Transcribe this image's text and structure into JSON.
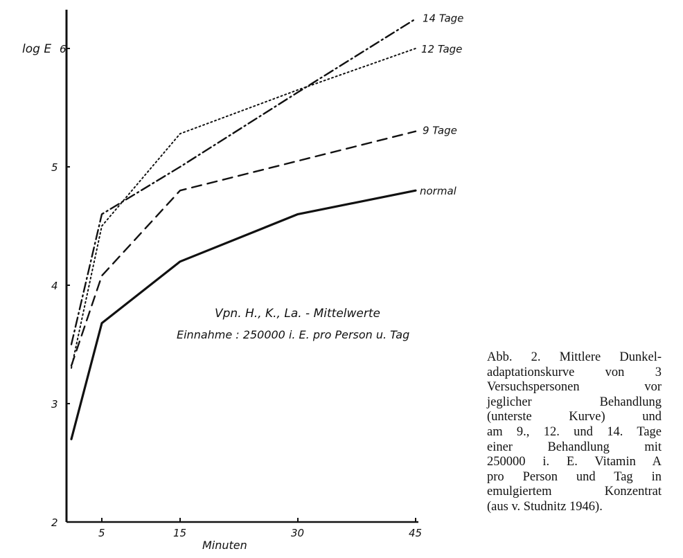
{
  "chart_data": {
    "type": "line",
    "x": [
      0,
      5,
      15,
      30,
      45
    ],
    "x_ticks": [
      "5",
      "15",
      "30",
      "45"
    ],
    "x_tick_values": [
      5,
      15,
      30,
      45
    ],
    "xlabel": "Minuten",
    "ylabel": "log E",
    "y_ticks": [
      "2",
      "3",
      "4",
      "5",
      "6"
    ],
    "y_tick_values": [
      2,
      3,
      4,
      5,
      6
    ],
    "xlim": [
      -1,
      45
    ],
    "ylim": [
      2,
      6.4
    ],
    "grid": false,
    "annotation_line1": "Vpn. H., K., La. - Mittelwerte",
    "annotation_line2": "Einnahme : 250000 i. E. pro Person u. Tag",
    "series": [
      {
        "name": "normal",
        "style": "solid",
        "values": [
          2.7,
          3.68,
          4.2,
          4.6,
          4.8
        ]
      },
      {
        "name": "9 Tage",
        "style": "dashed",
        "values": [
          3.32,
          4.08,
          4.8,
          5.05,
          5.3
        ]
      },
      {
        "name": "12 Tage",
        "style": "dotted",
        "values": [
          3.3,
          4.5,
          5.28,
          5.65,
          6.0
        ]
      },
      {
        "name": "14 Tage",
        "style": "dashdot",
        "values": [
          3.5,
          4.6,
          5.0,
          5.63,
          6.25
        ]
      }
    ]
  },
  "caption": {
    "lines": [
      "Abb. 2. Mittlere Dunkel-",
      "adaptationskurve von 3",
      "Versuchspersonen vor",
      "jeglicher Behandlung",
      "(unterste Kurve) und",
      "am 9., 12. und 14. Tage",
      "einer Behandlung mit",
      "250000 i. E. Vitamin A",
      "pro Person und Tag in",
      "emulgiertem Konzentrat",
      "(aus v. Studnitz 1946)."
    ]
  }
}
